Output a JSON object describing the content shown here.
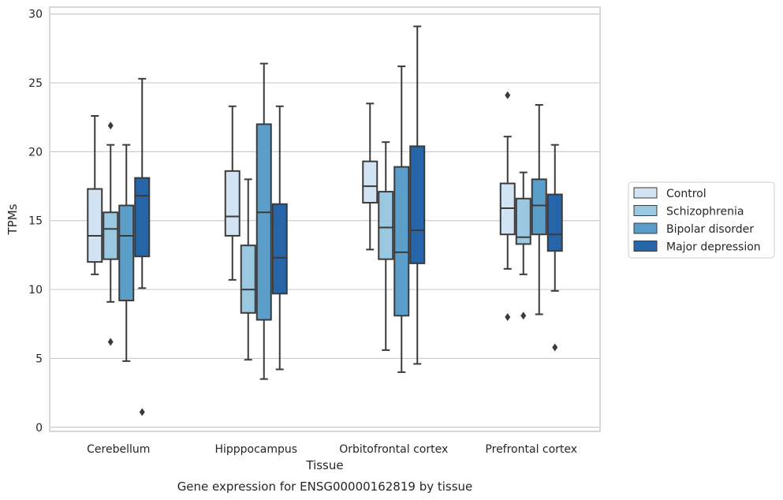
{
  "chart_data": {
    "type": "box",
    "caption": "Gene expression for ENSG00000162819 by tissue",
    "xlabel": "Tissue",
    "ylabel": "TPMs",
    "ylim": [
      -0.3,
      30.5
    ],
    "yticks": [
      0,
      5,
      10,
      15,
      20,
      25,
      30
    ],
    "grid": "horizontal",
    "legend_position": "right",
    "categories": [
      "Cerebellum",
      "Hipppocampus",
      "Orbitofrontal cortex",
      "Prefrontal cortex"
    ],
    "series": [
      {
        "name": "Control",
        "color": "#d2e3f3",
        "boxes": [
          {
            "whislo": 11.1,
            "q1": 12.0,
            "med": 13.9,
            "q3": 17.3,
            "whishi": 22.6,
            "fliers": []
          },
          {
            "whislo": 10.7,
            "q1": 13.9,
            "med": 15.3,
            "q3": 18.6,
            "whishi": 23.3,
            "fliers": []
          },
          {
            "whislo": 12.9,
            "q1": 16.3,
            "med": 17.5,
            "q3": 19.3,
            "whishi": 23.5,
            "fliers": []
          },
          {
            "whislo": 11.5,
            "q1": 14.0,
            "med": 15.9,
            "q3": 17.7,
            "whishi": 21.1,
            "fliers": [
              24.1,
              8.0
            ]
          }
        ]
      },
      {
        "name": "Schizophrenia",
        "color": "#9ac8e0",
        "boxes": [
          {
            "whislo": 9.1,
            "q1": 12.2,
            "med": 14.4,
            "q3": 15.6,
            "whishi": 20.5,
            "fliers": [
              21.9,
              6.2
            ]
          },
          {
            "whislo": 4.9,
            "q1": 8.3,
            "med": 10.0,
            "q3": 13.2,
            "whishi": 18.0,
            "fliers": []
          },
          {
            "whislo": 5.6,
            "q1": 12.2,
            "med": 14.5,
            "q3": 17.1,
            "whishi": 20.7,
            "fliers": []
          },
          {
            "whislo": 11.1,
            "q1": 13.3,
            "med": 13.8,
            "q3": 16.6,
            "whishi": 18.5,
            "fliers": [
              8.1
            ]
          }
        ]
      },
      {
        "name": "Bipolar disorder",
        "color": "#5a9ec9",
        "boxes": [
          {
            "whislo": 4.8,
            "q1": 9.2,
            "med": 13.9,
            "q3": 16.1,
            "whishi": 20.5,
            "fliers": []
          },
          {
            "whislo": 3.5,
            "q1": 7.8,
            "med": 15.6,
            "q3": 22.0,
            "whishi": 26.4,
            "fliers": []
          },
          {
            "whislo": 4.0,
            "q1": 8.1,
            "med": 12.7,
            "q3": 18.9,
            "whishi": 26.2,
            "fliers": []
          },
          {
            "whislo": 8.2,
            "q1": 14.0,
            "med": 16.1,
            "q3": 18.0,
            "whishi": 23.4,
            "fliers": []
          }
        ]
      },
      {
        "name": "Major depression",
        "color": "#2565a8",
        "boxes": [
          {
            "whislo": 10.1,
            "q1": 12.4,
            "med": 16.8,
            "q3": 18.1,
            "whishi": 25.3,
            "fliers": [
              1.1
            ]
          },
          {
            "whislo": 4.2,
            "q1": 9.7,
            "med": 12.3,
            "q3": 16.2,
            "whishi": 23.3,
            "fliers": []
          },
          {
            "whislo": 4.6,
            "q1": 11.9,
            "med": 14.3,
            "q3": 20.4,
            "whishi": 29.1,
            "fliers": []
          },
          {
            "whislo": 9.9,
            "q1": 12.8,
            "med": 14.0,
            "q3": 16.9,
            "whishi": 20.5,
            "fliers": [
              5.8
            ]
          }
        ]
      }
    ]
  }
}
